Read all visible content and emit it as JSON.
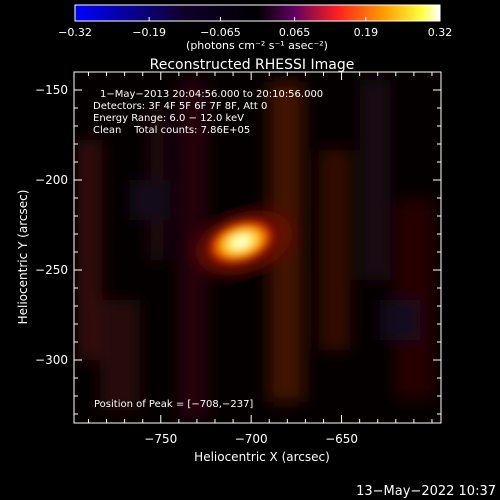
{
  "chart_data": {
    "type": "heatmap",
    "title": "Reconstructed RHESSI Image",
    "xlabel": "Heliocentric X (arcsec)",
    "ylabel": "Heliocentric Y (arcsec)",
    "xlim": [
      -798,
      -595
    ],
    "ylim": [
      -335,
      -140
    ],
    "xticks": [
      -750,
      -700,
      -650
    ],
    "yticks": [
      -150,
      -200,
      -250,
      -300
    ],
    "xtick_labels": [
      "−750",
      "−700",
      "−650"
    ],
    "ytick_labels": [
      "−150",
      "−200",
      "−250",
      "−300"
    ],
    "colorbar": {
      "min": -0.32,
      "max": 0.32,
      "ticks": [
        -0.32,
        -0.19,
        -0.065,
        0.065,
        0.19,
        0.32
      ],
      "tick_labels": [
        "−0.32",
        "−0.19",
        "−0.065",
        "0.065",
        "0.19",
        "0.32"
      ],
      "label": "(photons cm⁻² s⁻¹ asec⁻²)",
      "colors": [
        "#0000ff",
        "#000000",
        "#ff3300",
        "#ffff99",
        "#ffffff"
      ]
    },
    "annotations": [
      "1−May−2013 20:04:56.000 to 20:10:56.000",
      "Detectors: 3F 4F 5F 6F 7F 8F, Att 0",
      "Energy Range: 6.0 − 12.0 keV",
      "Clean    Total counts: 7.86E+05"
    ],
    "peak_label": "Position of Peak = [−708,−237]",
    "peak": {
      "x": -708,
      "y": -237,
      "value": 0.32
    },
    "footer_date": "13−May−2022 10:37"
  }
}
